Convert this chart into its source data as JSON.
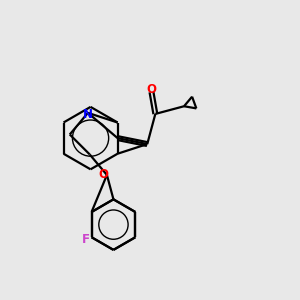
{
  "background_color": "#e8e8e8",
  "bond_color": "#000000",
  "atom_colors": {
    "O": "#ff0000",
    "N": "#0000ff",
    "F": "#cc44cc"
  },
  "figsize": [
    3.0,
    3.0
  ],
  "dpi": 100,
  "xlim": [
    0,
    10
  ],
  "ylim": [
    0,
    10
  ],
  "lw": 1.6
}
